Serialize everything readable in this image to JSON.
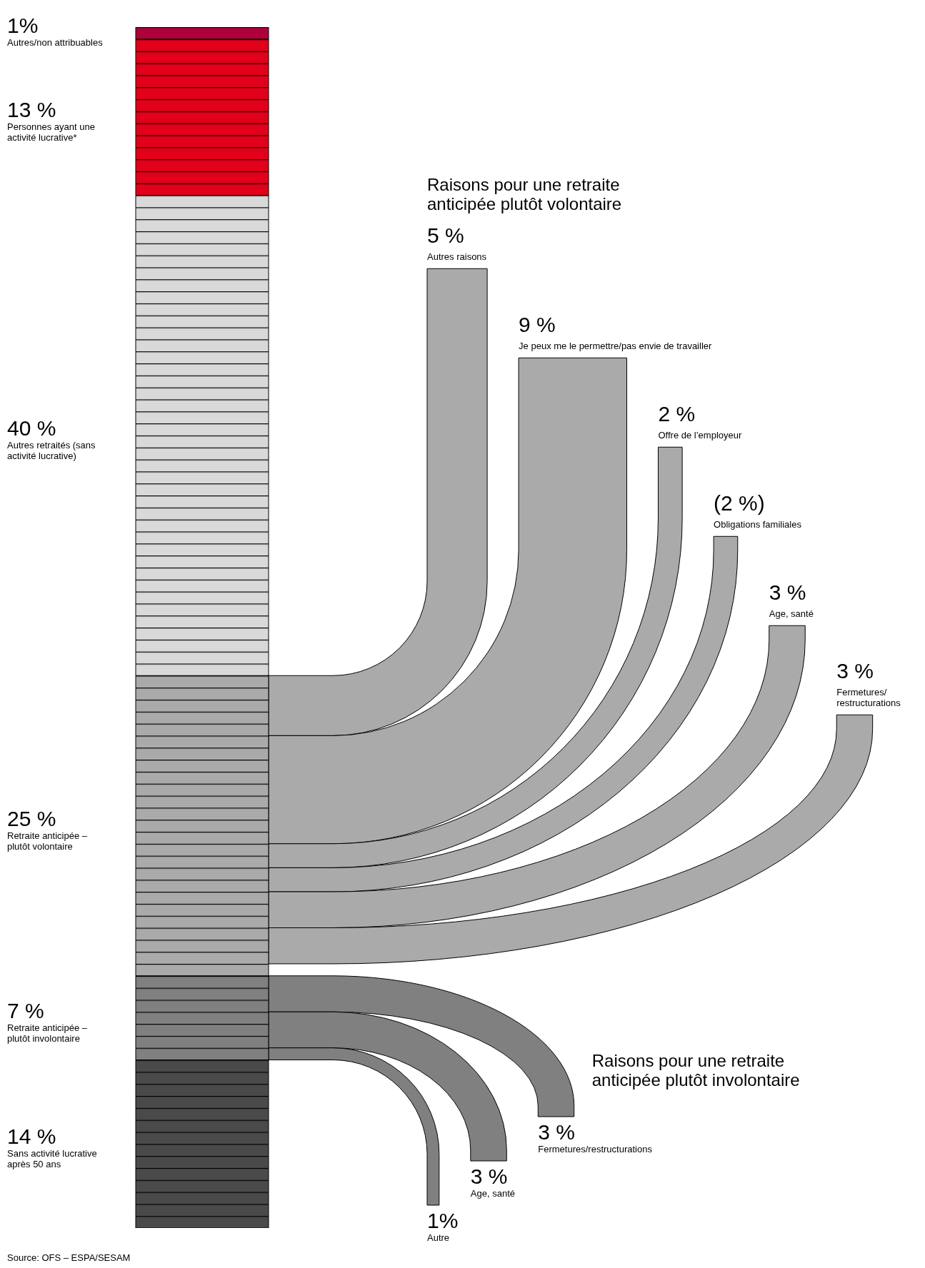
{
  "chart_data": {
    "type": "other",
    "categories": [
      "Autres/non attribuables",
      "Personnes ayant une activité lucrative*",
      "Autres retraités (sans activité lucrative)",
      "Retraite anticipée – plutôt volontaire",
      "Retraite anticipée – plutôt involontaire",
      "Sans activité lucrative après 50 ans",
      "Autres raisons",
      "Je peux me le permettre/pas envie de travailler",
      "Offre de l’employeur",
      "Obligations familiales",
      "Age, santé",
      "Fermetures/restructurations",
      "Fermetures/restructurations",
      "Age, santé",
      "Autre"
    ],
    "colors": [
      "#b0003a",
      "#e2001a",
      "#d9d9d9",
      "#aaaaaa",
      "#808080",
      "#4a4a4a",
      "#aaaaaa",
      "#aaaaaa",
      "#aaaaaa",
      "#aaaaaa",
      "#aaaaaa",
      "#aaaaaa",
      "#808080",
      "#808080",
      "#808080"
    ],
    "series": [
      {
        "values": [
          1,
          13,
          40,
          25,
          7,
          14,
          null,
          null,
          null,
          null,
          null,
          null,
          null,
          null,
          null
        ],
        "value_labels": [
          "1%",
          "13 %",
          "40 %",
          "25 %",
          "7 %",
          "14 %",
          null,
          null,
          null,
          null,
          null,
          null,
          null,
          null,
          null
        ]
      },
      {
        "name": "Raisons pour une retraite anticipée plutôt volontaire",
        "values": [
          null,
          null,
          null,
          null,
          null,
          null,
          5,
          9,
          2,
          2,
          3,
          3,
          null,
          null,
          null
        ],
        "value_labels": [
          null,
          null,
          null,
          null,
          null,
          null,
          "5 %",
          "9 %",
          "2 %",
          "(2 %)",
          "3 %",
          "3 %",
          null,
          null,
          null
        ]
      },
      {
        "name": "Raisons pour une retraite anticipée plutôt involontaire",
        "values": [
          null,
          null,
          null,
          null,
          null,
          null,
          null,
          null,
          null,
          null,
          null,
          null,
          3,
          3,
          1
        ],
        "value_labels": [
          null,
          null,
          null,
          null,
          null,
          null,
          null,
          null,
          null,
          null,
          null,
          null,
          "3 %",
          "3 %",
          "1%"
        ]
      }
    ],
    "annotations": [
      "Source: OFS – ESPA/SESAM"
    ]
  }
}
